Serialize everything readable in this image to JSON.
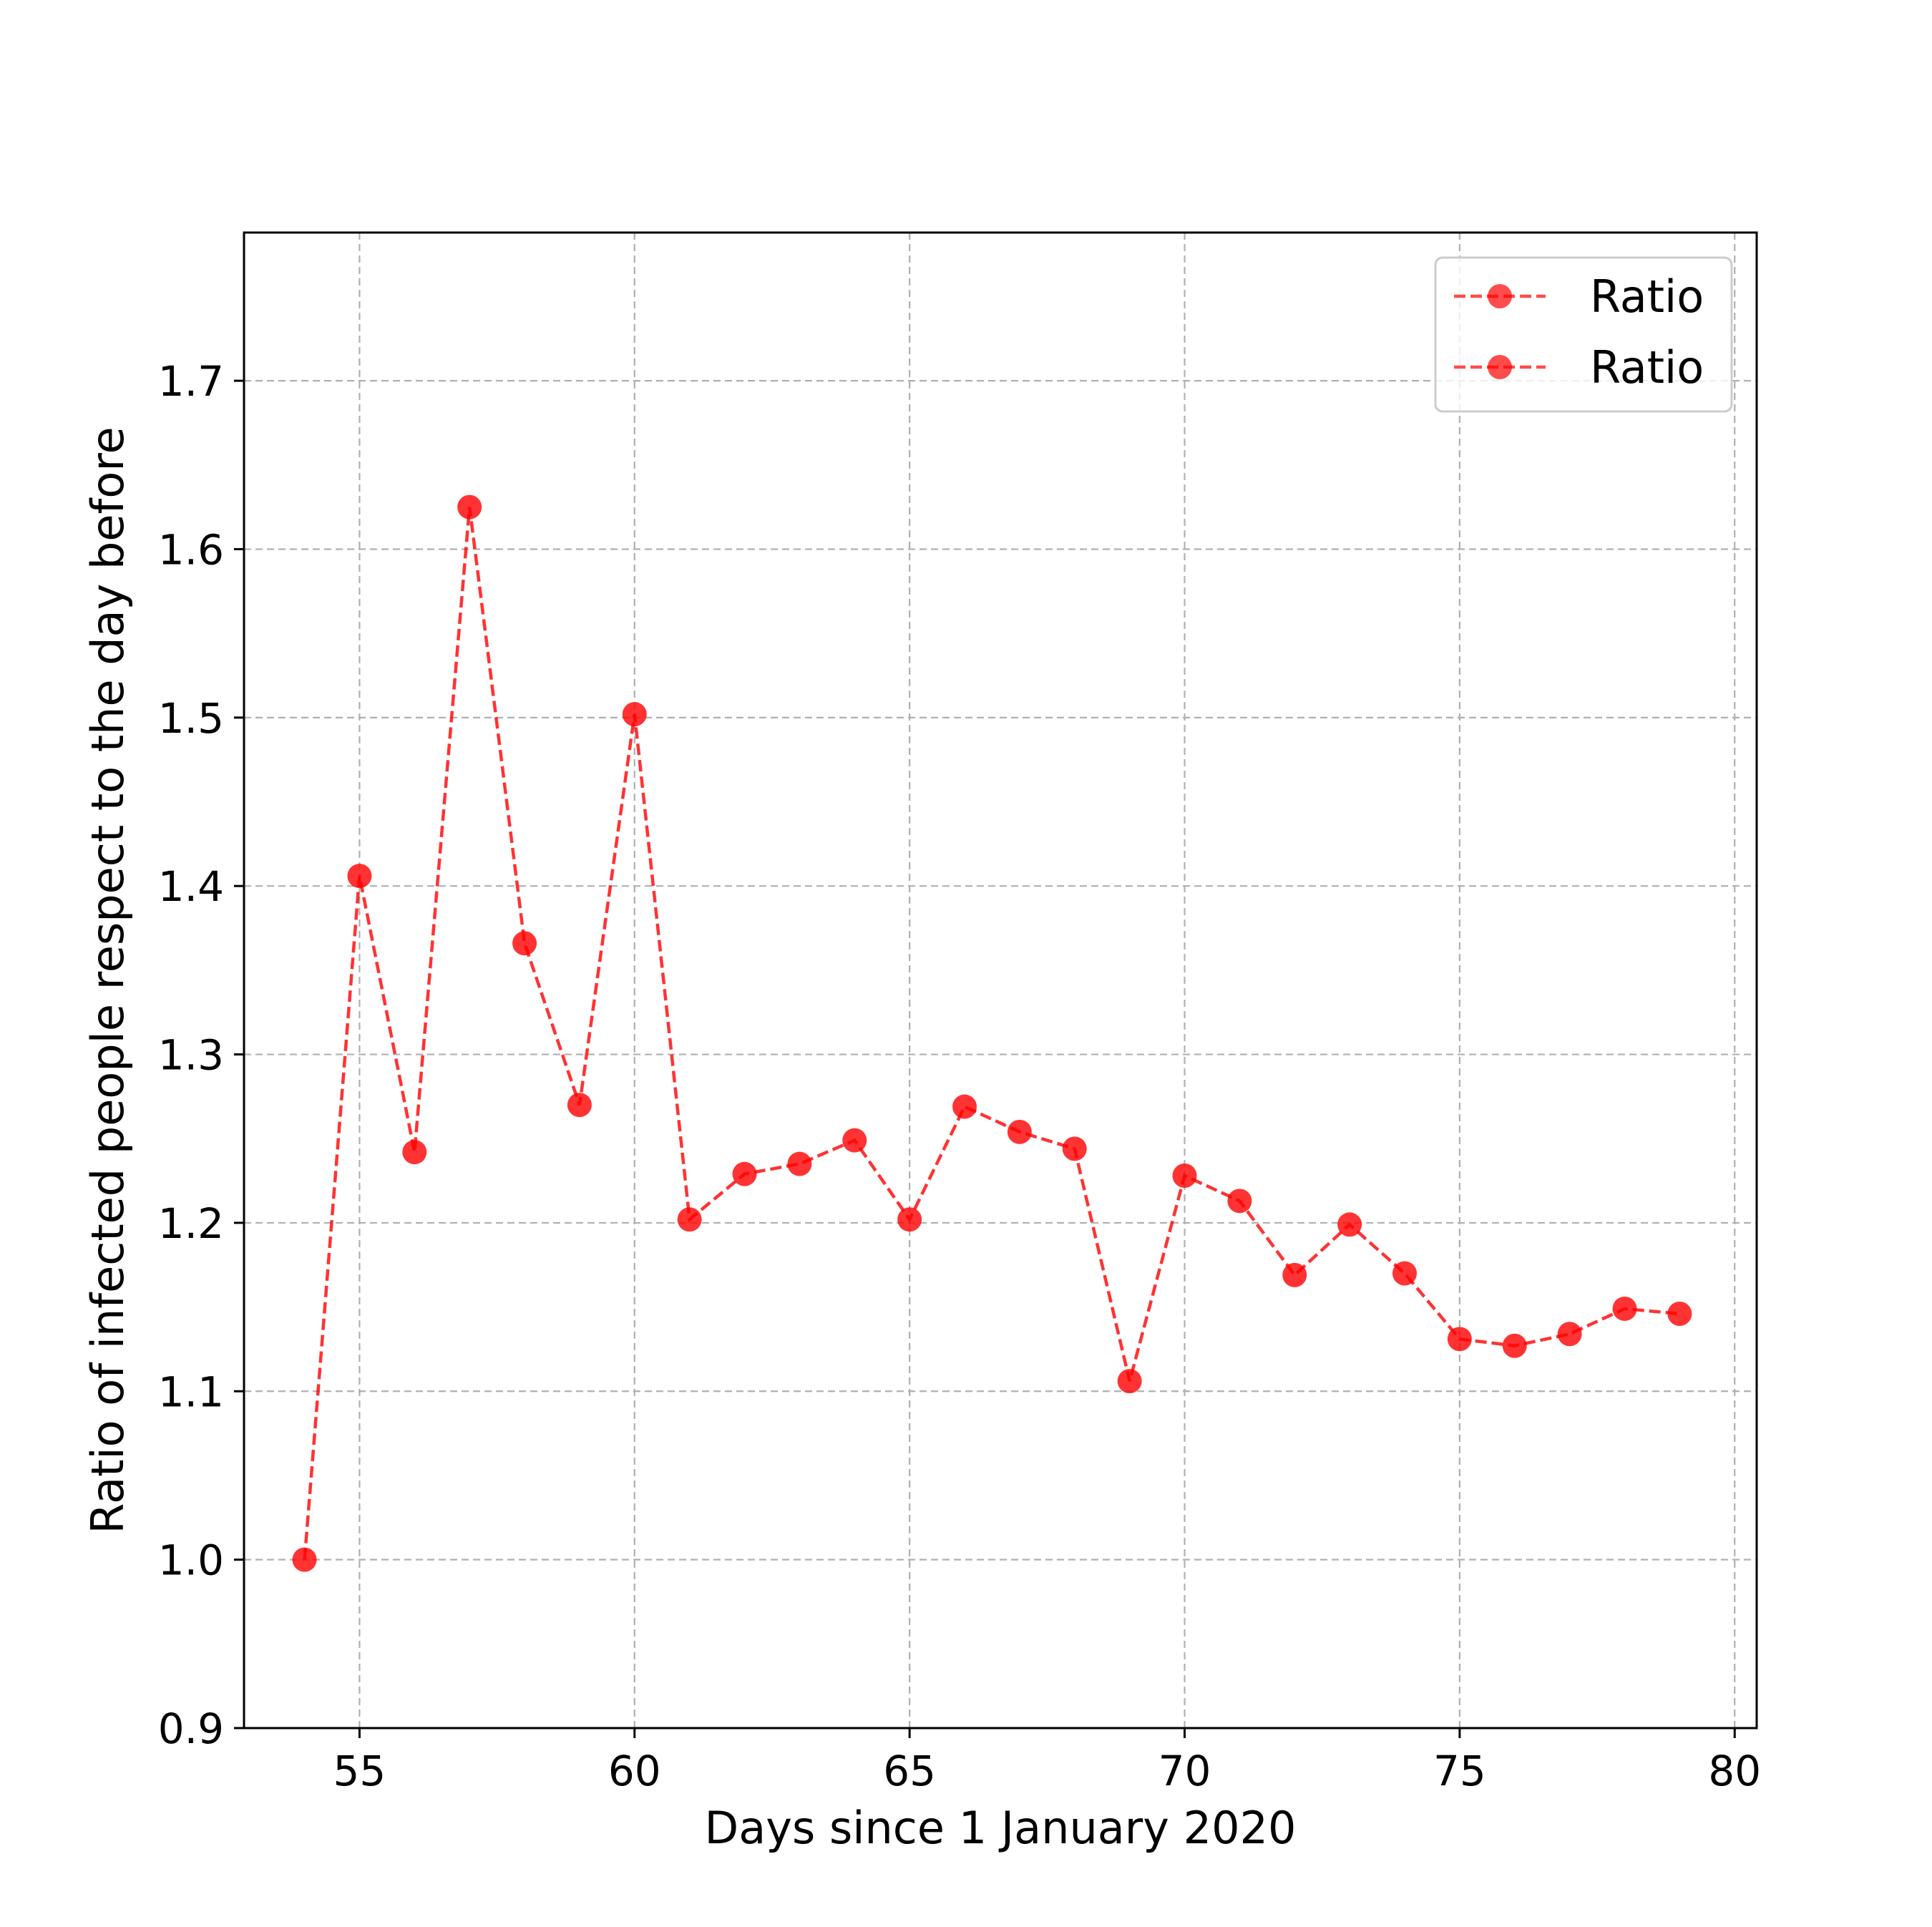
{
  "chart_data": {
    "type": "line",
    "xlabel": "Days since 1 January 2020",
    "ylabel": "Ratio of infected people respect to the day before",
    "xlim": [
      52.9,
      80.4
    ],
    "ylim": [
      0.9,
      1.788
    ],
    "xticks": [
      55,
      60,
      65,
      70,
      75,
      80
    ],
    "yticks": [
      0.9,
      1.0,
      1.1,
      1.2,
      1.3,
      1.4,
      1.5,
      1.6,
      1.7
    ],
    "xtick_labels": [
      "55",
      "60",
      "65",
      "70",
      "75",
      "80"
    ],
    "ytick_labels": [
      "0.9",
      "1.0",
      "1.1",
      "1.2",
      "1.3",
      "1.4",
      "1.5",
      "1.6",
      "1.7"
    ],
    "grid": true,
    "legend_position": "top-right",
    "legend": [
      "Ratio",
      "Ratio"
    ],
    "series": [
      {
        "name": "Ratio",
        "color": "#ff0000",
        "line_style": "dashed",
        "marker": "circle",
        "x": [
          54,
          55,
          56,
          57,
          58,
          59,
          60,
          61,
          62,
          63,
          64,
          65,
          66,
          67,
          68,
          69,
          70,
          71,
          72,
          73,
          74,
          75,
          76,
          77,
          78,
          79
        ],
        "y": [
          1.0,
          1.406,
          1.242,
          1.625,
          1.366,
          1.27,
          1.502,
          1.202,
          1.229,
          1.235,
          1.249,
          1.202,
          1.269,
          1.254,
          1.244,
          1.106,
          1.228,
          1.213,
          1.169,
          1.199,
          1.17,
          1.131,
          1.127,
          1.134,
          1.149,
          1.146
        ]
      }
    ]
  }
}
